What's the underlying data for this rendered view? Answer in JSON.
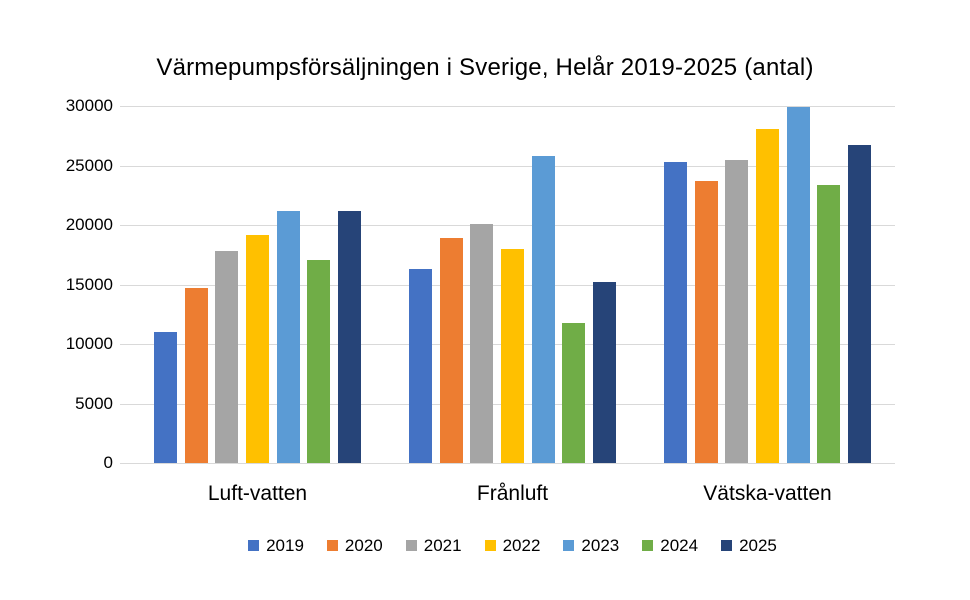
{
  "chart_data": {
    "type": "bar",
    "title": "Värmepumpsförsäljningen i Sverige, Helår 2019-2025 (antal)",
    "categories": [
      "Luft-vatten",
      "Frånluft",
      "Vätska-vatten"
    ],
    "series": [
      {
        "name": "2019",
        "color": "#4472C4",
        "values": [
          11000,
          16300,
          25300
        ]
      },
      {
        "name": "2020",
        "color": "#ED7D31",
        "values": [
          14700,
          18900,
          23700
        ]
      },
      {
        "name": "2021",
        "color": "#A5A5A5",
        "values": [
          17800,
          20100,
          25500
        ]
      },
      {
        "name": "2022",
        "color": "#FFC000",
        "values": [
          19200,
          18000,
          28100
        ]
      },
      {
        "name": "2023",
        "color": "#5B9BD5",
        "values": [
          21200,
          25800,
          29900
        ]
      },
      {
        "name": "2024",
        "color": "#70AD47",
        "values": [
          17100,
          11800,
          23400
        ]
      },
      {
        "name": "2025",
        "color": "#264478",
        "values": [
          21200,
          15200,
          26700
        ]
      }
    ],
    "y_axis": {
      "min": 0,
      "max": 30000,
      "step": 5000,
      "tick_labels": [
        "0",
        "5000",
        "10000",
        "15000",
        "20000",
        "25000",
        "30000"
      ]
    },
    "xlabel": "",
    "ylabel": "",
    "legend_position": "bottom",
    "grid": "horizontal"
  },
  "colors": {
    "background": "#FFFFFF",
    "gridline": "#D9D9D9",
    "text": "#000000"
  }
}
